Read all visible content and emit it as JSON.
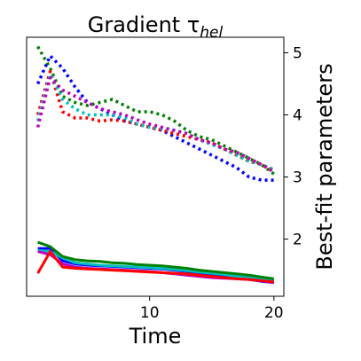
{
  "chart_data": {
    "type": "line",
    "title": "Gradient τ",
    "title_subscript": "hel",
    "xlabel": "Time",
    "ylabel": "Best-fit parameters",
    "xlim": [
      0.1,
      20.8
    ],
    "ylim": [
      1.08,
      5.25
    ],
    "x_ticks": [
      10,
      20
    ],
    "y_ticks": [
      2,
      3,
      4,
      5
    ],
    "y_axis_side": "right",
    "grid": false,
    "x": [
      1,
      2,
      3,
      4,
      5,
      6,
      7,
      8,
      9,
      10,
      11,
      12,
      13,
      14,
      15,
      16,
      17,
      18,
      19,
      20
    ],
    "series": [
      {
        "color": "#008000",
        "style": "dotted",
        "values": [
          5.1,
          4.75,
          4.3,
          4.2,
          4.15,
          4.2,
          4.25,
          4.15,
          4.05,
          4.05,
          4.0,
          3.9,
          3.75,
          3.65,
          3.6,
          3.5,
          3.4,
          3.3,
          3.2,
          3.05
        ]
      },
      {
        "color": "#0000ff",
        "style": "dotted",
        "values": [
          4.5,
          4.95,
          4.75,
          4.45,
          4.2,
          4.1,
          4.0,
          3.9,
          3.85,
          3.8,
          3.75,
          3.65,
          3.55,
          3.45,
          3.35,
          3.25,
          3.15,
          3.0,
          2.95,
          2.95
        ]
      },
      {
        "color": "#ff0000",
        "style": "dotted",
        "values": [
          4.0,
          4.7,
          4.05,
          3.95,
          3.95,
          3.9,
          3.92,
          3.9,
          3.85,
          3.8,
          3.75,
          3.7,
          3.65,
          3.6,
          3.55,
          3.45,
          3.35,
          3.25,
          3.2,
          3.1
        ]
      },
      {
        "color": "#00bfbf",
        "style": "dotted",
        "values": [
          3.9,
          4.65,
          4.25,
          4.1,
          4.0,
          4.0,
          4.0,
          3.95,
          3.85,
          3.8,
          3.78,
          3.75,
          3.7,
          3.6,
          3.52,
          3.45,
          3.35,
          3.25,
          3.2,
          3.12
        ]
      },
      {
        "color": "#bf00bf",
        "style": "dotted",
        "values": [
          3.8,
          4.6,
          4.4,
          4.3,
          4.2,
          4.1,
          4.05,
          4.0,
          3.92,
          3.85,
          3.8,
          3.75,
          3.7,
          3.6,
          3.55,
          3.45,
          3.4,
          3.3,
          3.2,
          3.08
        ]
      },
      {
        "color": "#0000ff",
        "style": "solid",
        "values": [
          1.85,
          1.85,
          1.65,
          1.6,
          1.58,
          1.57,
          1.56,
          1.55,
          1.54,
          1.53,
          1.52,
          1.5,
          1.48,
          1.45,
          1.43,
          1.4,
          1.38,
          1.35,
          1.32,
          1.3
        ]
      },
      {
        "color": "#00bfbf",
        "style": "solid",
        "values": [
          1.82,
          1.8,
          1.7,
          1.62,
          1.6,
          1.58,
          1.57,
          1.56,
          1.55,
          1.54,
          1.53,
          1.51,
          1.49,
          1.47,
          1.45,
          1.43,
          1.4,
          1.38,
          1.35,
          1.32
        ]
      },
      {
        "color": "#bf00bf",
        "style": "solid",
        "values": [
          1.8,
          1.75,
          1.6,
          1.55,
          1.53,
          1.52,
          1.51,
          1.5,
          1.49,
          1.48,
          1.46,
          1.44,
          1.42,
          1.4,
          1.38,
          1.37,
          1.36,
          1.35,
          1.33,
          1.3
        ]
      },
      {
        "color": "#ff0000",
        "style": "solid",
        "values": [
          1.45,
          1.8,
          1.55,
          1.53,
          1.52,
          1.51,
          1.5,
          1.49,
          1.48,
          1.47,
          1.46,
          1.45,
          1.44,
          1.42,
          1.4,
          1.38,
          1.36,
          1.35,
          1.33,
          1.31
        ]
      },
      {
        "color": "#008000",
        "style": "solid",
        "values": [
          1.95,
          1.88,
          1.72,
          1.67,
          1.65,
          1.64,
          1.62,
          1.61,
          1.59,
          1.58,
          1.57,
          1.55,
          1.53,
          1.5,
          1.48,
          1.46,
          1.44,
          1.42,
          1.39,
          1.36
        ]
      }
    ]
  }
}
